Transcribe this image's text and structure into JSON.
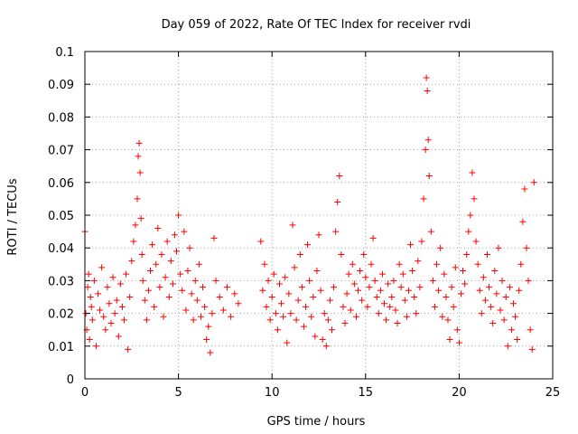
{
  "chart_data": {
    "type": "scatter",
    "title": "Day 059 of 2022, Rate Of TEC Index for receiver rvdi",
    "xlabel": "GPS time / hours",
    "ylabel": "ROTI / TECUs",
    "xlim": [
      0,
      25
    ],
    "ylim": [
      0,
      0.1
    ],
    "xticks": [
      "0",
      "5",
      "10",
      "15",
      "20",
      "25"
    ],
    "yticks": [
      "0",
      "0.01",
      "0.02",
      "0.03",
      "0.04",
      "0.05",
      "0.06",
      "0.07",
      "0.08",
      "0.09",
      "0.1"
    ],
    "grid": true,
    "marker": "plus",
    "series_color": "#ff0000",
    "series": [
      {
        "x": [
          0.0,
          0.05,
          0.1,
          0.15,
          0.2,
          0.25,
          0.3,
          0.35,
          0.4,
          0.5,
          0.6,
          0.7,
          0.8,
          0.9,
          1.0,
          1.1,
          1.2,
          1.3,
          1.4,
          1.5,
          1.6,
          1.7,
          1.8,
          1.9,
          2.0,
          2.1,
          2.2,
          2.3,
          2.4,
          2.5,
          2.6,
          2.7,
          2.8,
          2.85,
          2.9,
          2.95,
          3.0,
          3.05,
          3.1,
          3.2,
          3.3,
          3.4,
          3.5,
          3.6,
          3.7,
          3.8,
          3.9,
          4.0,
          4.1,
          4.2,
          4.3,
          4.4,
          4.5,
          4.6,
          4.7,
          4.8,
          4.9,
          5.0,
          5.1,
          5.2,
          5.3,
          5.4,
          5.5,
          5.6,
          5.7,
          5.8,
          5.9,
          6.0,
          6.1,
          6.2,
          6.3,
          6.4,
          6.5,
          6.6,
          6.7,
          6.8,
          6.9,
          7.0,
          7.2,
          7.4,
          7.6,
          7.8,
          8.0,
          8.2,
          9.4,
          9.5,
          9.6,
          9.7,
          9.8,
          9.9,
          10.0,
          10.1,
          10.2,
          10.3,
          10.4,
          10.5,
          10.6,
          10.7,
          10.8,
          10.9,
          11.0,
          11.1,
          11.2,
          11.3,
          11.4,
          11.5,
          11.6,
          11.7,
          11.8,
          11.9,
          12.0,
          12.1,
          12.2,
          12.3,
          12.4,
          12.5,
          12.6,
          12.7,
          12.8,
          12.9,
          13.0,
          13.1,
          13.2,
          13.3,
          13.4,
          13.5,
          13.6,
          13.7,
          13.8,
          13.9,
          14.0,
          14.1,
          14.2,
          14.3,
          14.4,
          14.5,
          14.6,
          14.7,
          14.8,
          14.9,
          15.0,
          15.1,
          15.2,
          15.3,
          15.4,
          15.5,
          15.6,
          15.7,
          15.8,
          15.9,
          16.0,
          16.1,
          16.2,
          16.3,
          16.4,
          16.5,
          16.6,
          16.7,
          16.8,
          16.9,
          17.0,
          17.1,
          17.2,
          17.3,
          17.4,
          17.5,
          17.6,
          17.7,
          17.8,
          17.9,
          18.0,
          18.1,
          18.2,
          18.25,
          18.3,
          18.35,
          18.4,
          18.5,
          18.6,
          18.7,
          18.8,
          18.9,
          19.0,
          19.1,
          19.2,
          19.3,
          19.4,
          19.5,
          19.6,
          19.7,
          19.8,
          19.9,
          20.0,
          20.1,
          20.2,
          20.3,
          20.4,
          20.5,
          20.6,
          20.7,
          20.8,
          20.9,
          21.0,
          21.1,
          21.2,
          21.3,
          21.4,
          21.5,
          21.6,
          21.7,
          21.8,
          21.9,
          22.0,
          22.1,
          22.2,
          22.3,
          22.4,
          22.5,
          22.6,
          22.7,
          22.8,
          22.9,
          23.0,
          23.1,
          23.2,
          23.3,
          23.4,
          23.5,
          23.6,
          23.7,
          23.8,
          23.9,
          24.0
        ],
        "y": [
          0.045,
          0.02,
          0.015,
          0.028,
          0.032,
          0.012,
          0.025,
          0.022,
          0.018,
          0.03,
          0.01,
          0.026,
          0.021,
          0.034,
          0.019,
          0.015,
          0.028,
          0.023,
          0.017,
          0.031,
          0.02,
          0.024,
          0.013,
          0.029,
          0.022,
          0.018,
          0.032,
          0.009,
          0.025,
          0.036,
          0.042,
          0.047,
          0.055,
          0.068,
          0.072,
          0.063,
          0.049,
          0.038,
          0.03,
          0.024,
          0.018,
          0.027,
          0.033,
          0.041,
          0.022,
          0.035,
          0.046,
          0.028,
          0.038,
          0.019,
          0.031,
          0.042,
          0.025,
          0.036,
          0.029,
          0.044,
          0.039,
          0.05,
          0.032,
          0.027,
          0.045,
          0.021,
          0.033,
          0.04,
          0.026,
          0.018,
          0.03,
          0.024,
          0.035,
          0.019,
          0.028,
          0.022,
          0.012,
          0.016,
          0.008,
          0.02,
          0.043,
          0.03,
          0.025,
          0.021,
          0.028,
          0.019,
          0.026,
          0.023,
          0.042,
          0.027,
          0.035,
          0.022,
          0.03,
          0.018,
          0.025,
          0.032,
          0.02,
          0.015,
          0.029,
          0.023,
          0.019,
          0.031,
          0.011,
          0.026,
          0.02,
          0.047,
          0.034,
          0.018,
          0.024,
          0.038,
          0.028,
          0.016,
          0.022,
          0.041,
          0.03,
          0.019,
          0.025,
          0.013,
          0.033,
          0.044,
          0.027,
          0.012,
          0.02,
          0.01,
          0.018,
          0.024,
          0.015,
          0.028,
          0.045,
          0.054,
          0.062,
          0.038,
          0.022,
          0.017,
          0.026,
          0.032,
          0.021,
          0.035,
          0.029,
          0.019,
          0.027,
          0.033,
          0.024,
          0.038,
          0.031,
          0.022,
          0.028,
          0.035,
          0.043,
          0.03,
          0.025,
          0.02,
          0.027,
          0.032,
          0.023,
          0.018,
          0.029,
          0.022,
          0.025,
          0.03,
          0.021,
          0.017,
          0.035,
          0.028,
          0.032,
          0.024,
          0.019,
          0.027,
          0.041,
          0.033,
          0.025,
          0.02,
          0.036,
          0.028,
          0.042,
          0.055,
          0.07,
          0.092,
          0.088,
          0.073,
          0.062,
          0.045,
          0.03,
          0.022,
          0.035,
          0.027,
          0.04,
          0.019,
          0.032,
          0.025,
          0.018,
          0.012,
          0.028,
          0.022,
          0.034,
          0.015,
          0.011,
          0.026,
          0.033,
          0.029,
          0.038,
          0.045,
          0.05,
          0.063,
          0.055,
          0.042,
          0.035,
          0.027,
          0.02,
          0.031,
          0.024,
          0.038,
          0.028,
          0.022,
          0.017,
          0.033,
          0.026,
          0.04,
          0.021,
          0.03,
          0.018,
          0.025,
          0.01,
          0.028,
          0.015,
          0.023,
          0.019,
          0.012,
          0.027,
          0.035,
          0.048,
          0.058,
          0.04,
          0.03,
          0.015,
          0.009,
          0.06
        ]
      }
    ]
  }
}
